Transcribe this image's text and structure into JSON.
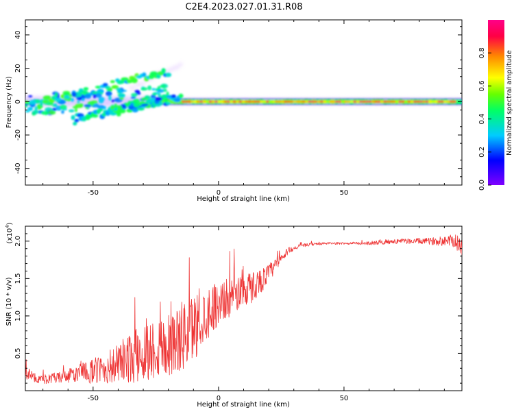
{
  "title": "C2E4.2023.027.01.31.R08",
  "colors": {
    "snr_line": "#ee3333",
    "spectrum_ridge": "#e53935",
    "colorbar": [
      "#7f00ff",
      "#0000ff",
      "#00ccff",
      "#00ff66",
      "#66ff00",
      "#ffff00",
      "#ff8800",
      "#ff0044",
      "#ff0088"
    ]
  },
  "chart_data": [
    {
      "type": "heatmap",
      "name": "spectrogram",
      "title": "",
      "xlabel": "Height of straight line (km)",
      "ylabel": "Frequency (Hz)",
      "xlim": [
        -77,
        97
      ],
      "ylim": [
        -50,
        49
      ],
      "x_ticks": [
        -50,
        0,
        50
      ],
      "x_tick_labels": [
        "-50",
        "0",
        "50"
      ],
      "y_ticks": [
        -40,
        -20,
        0,
        20,
        40
      ],
      "y_tick_labels": [
        "-40",
        "-20",
        "0",
        "20",
        "40"
      ],
      "colorbar": {
        "label": "Normalized spectral amplitude",
        "range": [
          0,
          1
        ],
        "ticks": [
          0.0,
          0.2,
          0.4,
          0.6,
          0.8
        ],
        "tick_labels": [
          "0.0",
          "0.2",
          "0.4",
          "0.6",
          "0.8"
        ]
      },
      "features": [
        {
          "kind": "main_ridge",
          "x_range": [
            -25,
            97
          ],
          "freq": 0,
          "amplitude": 0.45
        },
        {
          "kind": "strong_ridge",
          "x_range": [
            -14,
            95
          ],
          "freq": 0,
          "amplitude": 0.9
        },
        {
          "kind": "upper_branch",
          "from": [
            -77,
            -3
          ],
          "to": [
            -20,
            18
          ],
          "amplitude": 0.35
        },
        {
          "kind": "lower_branch",
          "from": [
            -58,
            -11
          ],
          "to": [
            -15,
            3
          ],
          "amplitude": 0.3
        },
        {
          "kind": "scatter_blobs",
          "x_range": [
            -77,
            -20
          ],
          "freq_range": [
            -12,
            20
          ],
          "amplitude": 0.35
        }
      ]
    },
    {
      "type": "line",
      "name": "snr",
      "title": "",
      "xlabel": "Height of straight line (km)",
      "ylabel": "SNR (10 * v/v)",
      "multiplier_label": "(x10",
      "multiplier_exponent": "4",
      "multiplier_close": ")",
      "xlim": [
        -77,
        97
      ],
      "ylim": [
        0,
        2.2
      ],
      "x_ticks": [
        -50,
        0,
        50
      ],
      "x_tick_labels": [
        "-50",
        "0",
        "50"
      ],
      "y_ticks": [
        0.5,
        1.0,
        1.5,
        2.0
      ],
      "y_tick_labels": [
        "0.5",
        "1.0",
        "1.5",
        "2.0"
      ],
      "series": [
        {
          "x": [
            -77,
            -72,
            -67,
            -62,
            -57,
            -52,
            -47,
            -42,
            -37,
            -32,
            -27,
            -22,
            -17,
            -12,
            -7,
            -2,
            3,
            8,
            13,
            18,
            23,
            28,
            33,
            38,
            43,
            48,
            53,
            58,
            63,
            68,
            73,
            78,
            83,
            88,
            93,
            97
          ],
          "y": [
            0.25,
            0.15,
            0.16,
            0.18,
            0.22,
            0.25,
            0.28,
            0.33,
            0.4,
            0.48,
            0.55,
            0.6,
            0.66,
            0.78,
            0.95,
            1.13,
            1.22,
            1.32,
            1.38,
            1.5,
            1.68,
            1.88,
            1.94,
            1.96,
            1.97,
            1.97,
            1.97,
            1.97,
            1.98,
            1.99,
            2.0,
            2.0,
            2.0,
            2.0,
            2.02,
            1.92
          ],
          "noise": [
            0.1,
            0.05,
            0.07,
            0.08,
            0.12,
            0.15,
            0.2,
            0.25,
            0.32,
            0.38,
            0.42,
            0.45,
            0.45,
            0.5,
            0.4,
            0.32,
            0.27,
            0.25,
            0.22,
            0.15,
            0.1,
            0.04,
            0.02,
            0.02,
            0.015,
            0.015,
            0.015,
            0.02,
            0.03,
            0.03,
            0.03,
            0.04,
            0.04,
            0.06,
            0.08,
            0.15
          ]
        }
      ]
    }
  ]
}
